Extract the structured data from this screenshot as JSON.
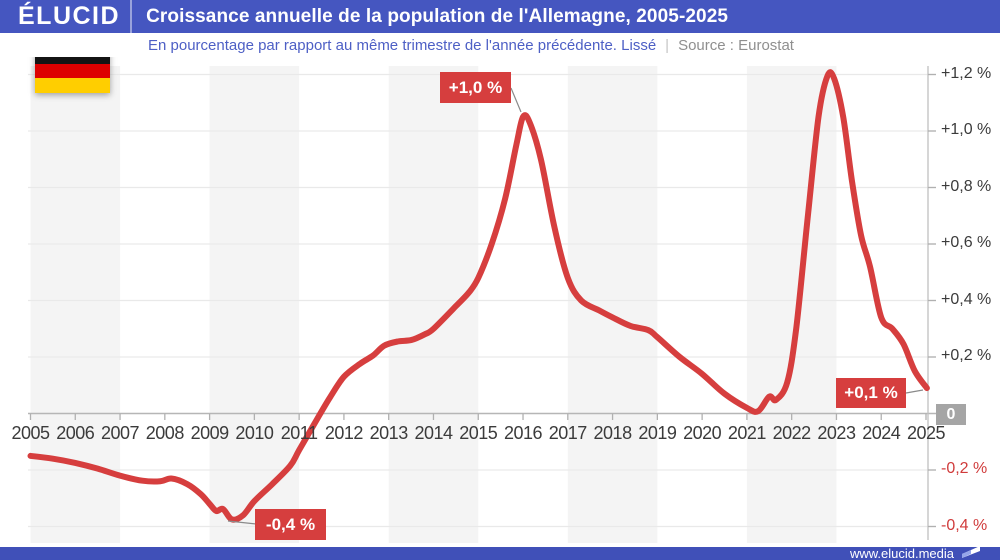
{
  "header": {
    "logo": "ÉLUCID",
    "title": "Croissance annuelle de la population de l'Allemagne, 2005-2025"
  },
  "subtitle": {
    "text": "En pourcentage par rapport au même trimestre de l'année précédente. Lissé",
    "separator": "|",
    "source": "Source : Eurostat"
  },
  "footer": {
    "url": "www.elucid.media"
  },
  "colors": {
    "brand_blue": "#4556c0",
    "subtitle_blue": "#4d5fc5",
    "line_red": "#d63e3e",
    "negative_label_red": "#d03b3b",
    "stripe_gray": "#f4f4f4",
    "grid_gray": "#e9e9e9",
    "axis_gray": "#c0c0c0",
    "tick_gray": "#b0b0b0",
    "label_dark": "#3b3b3b",
    "zero_box_gray": "#a5a5a5",
    "flag_black": "#141414",
    "flag_red": "#dd0000",
    "flag_gold": "#ffce00"
  },
  "chart_data": {
    "type": "line",
    "title": "Croissance annuelle de la population de l'Allemagne, 2005-2025",
    "subtitle": "En pourcentage par rapport au même trimestre de l'année précédente. Lissé",
    "source": "Source : Eurostat",
    "unit": "%",
    "xlim": [
      2005,
      2025.1
    ],
    "ylim": [
      -0.45,
      1.25
    ],
    "grid": true,
    "x_ticks": [
      2005,
      2006,
      2007,
      2008,
      2009,
      2010,
      2011,
      2012,
      2013,
      2014,
      2015,
      2016,
      2017,
      2018,
      2019,
      2020,
      2021,
      2022,
      2023,
      2024,
      2025
    ],
    "y_ticks": [
      {
        "label": "+1,2 %",
        "value": 1.2
      },
      {
        "label": "+1,0 %",
        "value": 1.0
      },
      {
        "label": "+0,8 %",
        "value": 0.8
      },
      {
        "label": "+0,6 %",
        "value": 0.6
      },
      {
        "label": "+0,4 %",
        "value": 0.4
      },
      {
        "label": "+0,2 %",
        "value": 0.2
      },
      {
        "label": "-0,2 %",
        "value": -0.2
      },
      {
        "label": "-0,4 %",
        "value": -0.4
      }
    ],
    "zero_label": "0",
    "stripes": [
      [
        2005,
        2007
      ],
      [
        2009,
        2011
      ],
      [
        2013,
        2015
      ],
      [
        2017,
        2019
      ],
      [
        2021,
        2023
      ]
    ],
    "series": [
      {
        "name": "Croissance annuelle de la population de l'Allemagne (lissé)",
        "color": "#d63e3e",
        "points": [
          [
            2005.0,
            -0.15
          ],
          [
            2005.5,
            -0.16
          ],
          [
            2006.0,
            -0.175
          ],
          [
            2006.5,
            -0.195
          ],
          [
            2007.0,
            -0.22
          ],
          [
            2007.5,
            -0.238
          ],
          [
            2007.9,
            -0.24
          ],
          [
            2008.15,
            -0.23
          ],
          [
            2008.5,
            -0.25
          ],
          [
            2008.8,
            -0.285
          ],
          [
            2009.0,
            -0.32
          ],
          [
            2009.15,
            -0.345
          ],
          [
            2009.3,
            -0.338
          ],
          [
            2009.5,
            -0.375
          ],
          [
            2009.75,
            -0.36
          ],
          [
            2010.0,
            -0.31
          ],
          [
            2010.4,
            -0.25
          ],
          [
            2010.8,
            -0.185
          ],
          [
            2011.0,
            -0.13
          ],
          [
            2011.4,
            -0.02
          ],
          [
            2011.7,
            0.06
          ],
          [
            2012.0,
            0.13
          ],
          [
            2012.35,
            0.175
          ],
          [
            2012.65,
            0.205
          ],
          [
            2012.9,
            0.24
          ],
          [
            2013.2,
            0.255
          ],
          [
            2013.5,
            0.26
          ],
          [
            2013.8,
            0.28
          ],
          [
            2014.0,
            0.3
          ],
          [
            2014.5,
            0.38
          ],
          [
            2014.8,
            0.43
          ],
          [
            2015.0,
            0.48
          ],
          [
            2015.3,
            0.6
          ],
          [
            2015.6,
            0.76
          ],
          [
            2015.85,
            0.95
          ],
          [
            2016.0,
            1.05
          ],
          [
            2016.15,
            1.03
          ],
          [
            2016.4,
            0.9
          ],
          [
            2016.7,
            0.66
          ],
          [
            2017.0,
            0.48
          ],
          [
            2017.3,
            0.4
          ],
          [
            2017.7,
            0.365
          ],
          [
            2018.0,
            0.34
          ],
          [
            2018.4,
            0.31
          ],
          [
            2018.8,
            0.295
          ],
          [
            2019.0,
            0.27
          ],
          [
            2019.5,
            0.2
          ],
          [
            2020.0,
            0.14
          ],
          [
            2020.5,
            0.07
          ],
          [
            2021.0,
            0.02
          ],
          [
            2021.25,
            0.008
          ],
          [
            2021.5,
            0.06
          ],
          [
            2021.65,
            0.048
          ],
          [
            2021.9,
            0.11
          ],
          [
            2022.1,
            0.3
          ],
          [
            2022.35,
            0.68
          ],
          [
            2022.6,
            1.05
          ],
          [
            2022.8,
            1.195
          ],
          [
            2022.95,
            1.185
          ],
          [
            2023.15,
            1.05
          ],
          [
            2023.35,
            0.82
          ],
          [
            2023.55,
            0.63
          ],
          [
            2023.75,
            0.52
          ],
          [
            2024.0,
            0.34
          ],
          [
            2024.25,
            0.3
          ],
          [
            2024.5,
            0.245
          ],
          [
            2024.75,
            0.15
          ],
          [
            2025.02,
            0.09
          ]
        ]
      }
    ],
    "annotations": [
      {
        "label": "+1,0 %",
        "year": 2016.0,
        "value": 1.05
      },
      {
        "label": "+0,1 %",
        "year": 2025.0,
        "value": 0.09
      },
      {
        "label": "-0,4 %",
        "year": 2009.5,
        "value": -0.375
      }
    ]
  }
}
